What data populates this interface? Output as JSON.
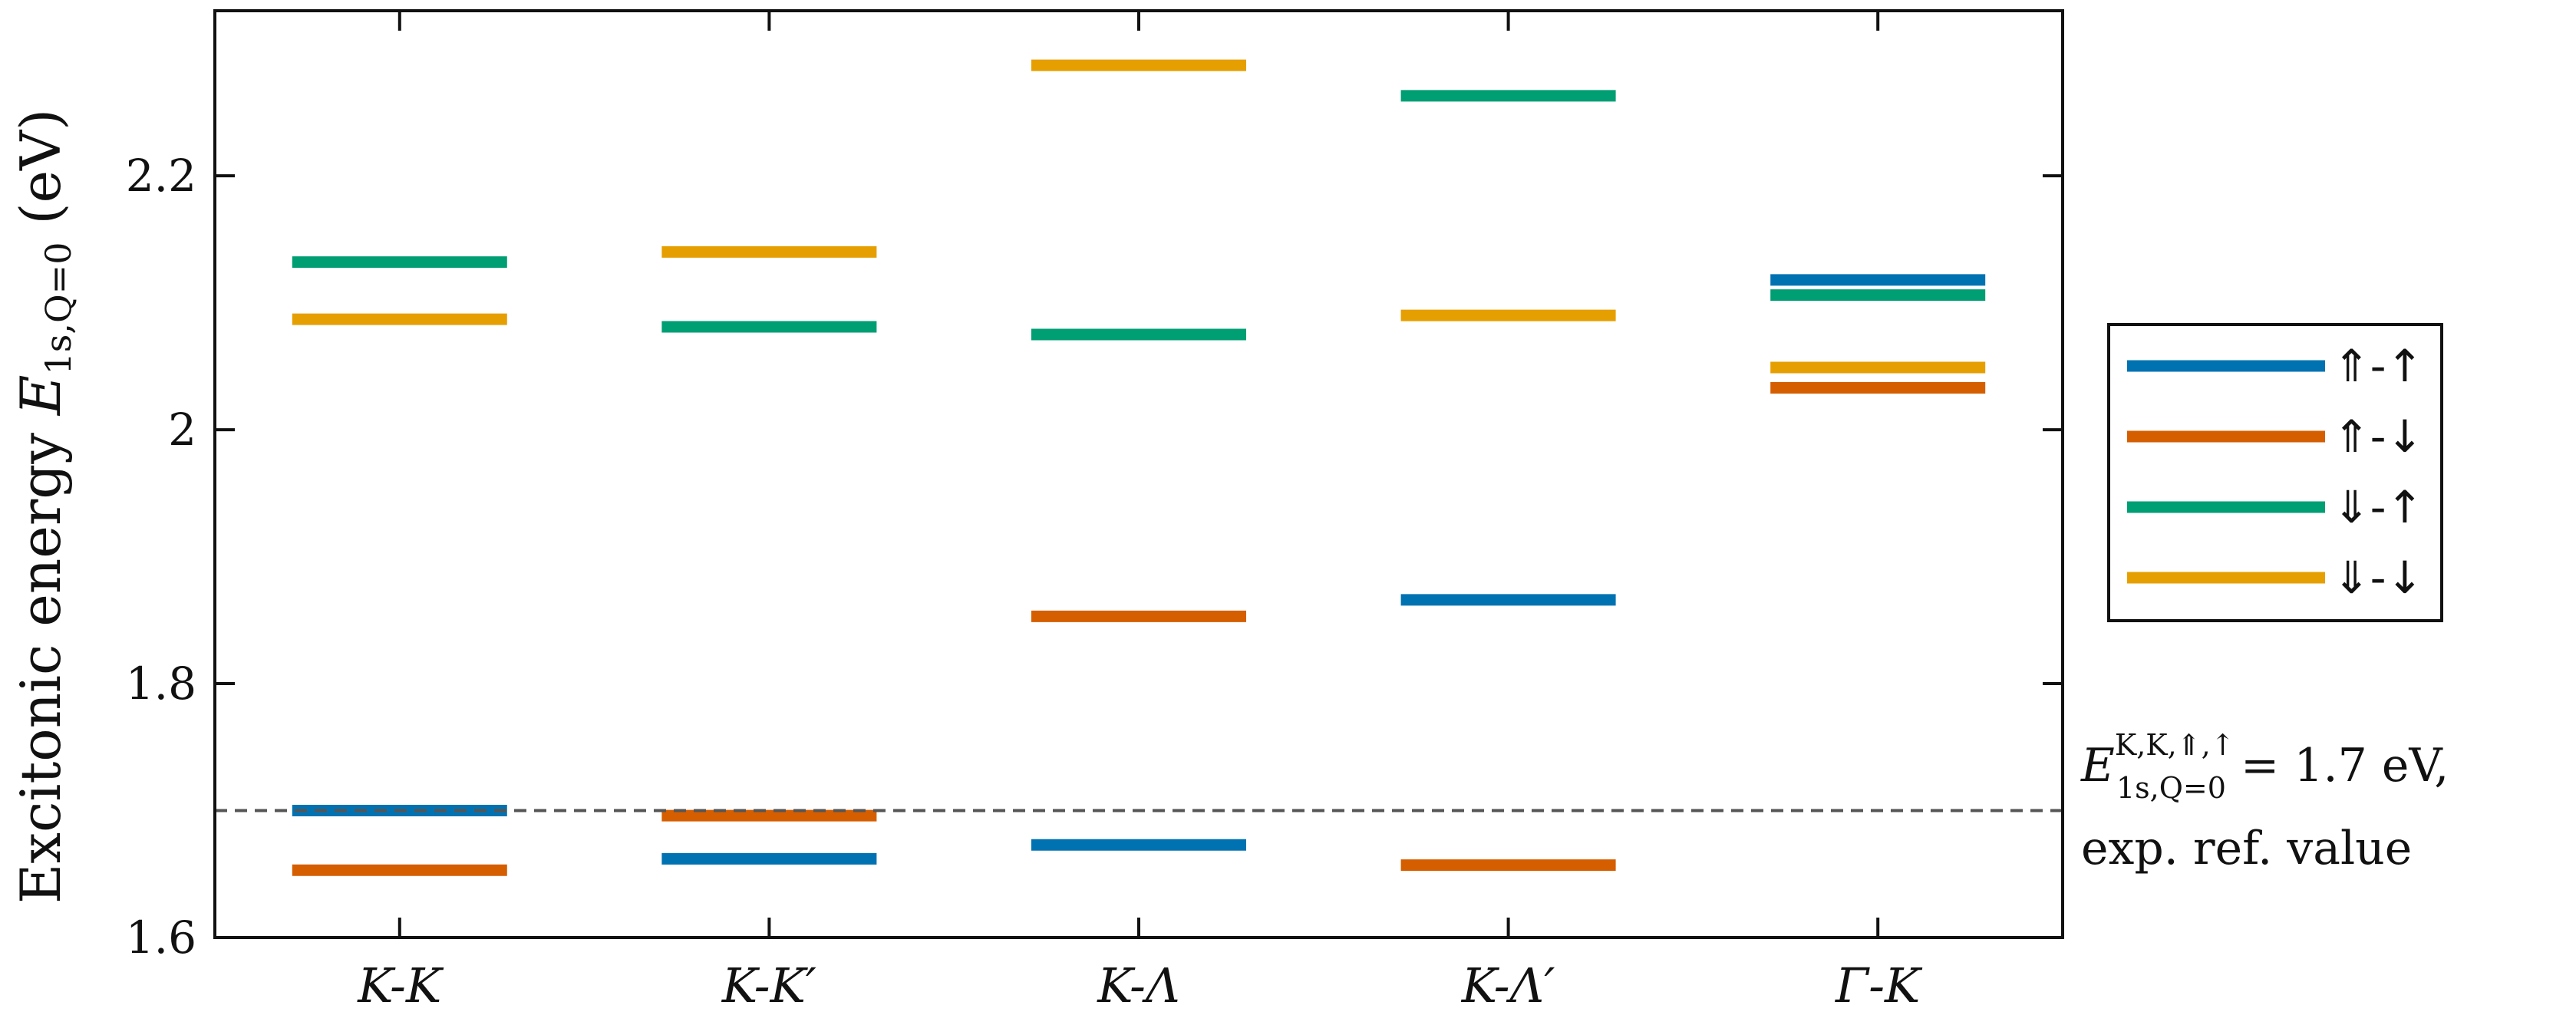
{
  "chart_data": {
    "type": "bar",
    "title": "",
    "xlabel": "",
    "ylabel": "Excitonic energy E_{1s,Q=0} (eV)",
    "ylabel_main": "Excitonic energy ",
    "ylabel_symbol": "E",
    "ylabel_sub": "1s,Q=0",
    "ylabel_unit": " (eV)",
    "ylim": [
      1.6,
      2.33
    ],
    "yticks": [
      {
        "value": 1.6,
        "label": "1.6"
      },
      {
        "value": 1.8,
        "label": "1.8"
      },
      {
        "value": 2.0,
        "label": "2"
      },
      {
        "value": 2.2,
        "label": "2.2"
      }
    ],
    "categories": [
      "K-K",
      "K-K′",
      "K-Λ",
      "K-Λ′",
      "Γ-K"
    ],
    "series": [
      {
        "name": "⇑-↑",
        "color": "#0072B2",
        "values": [
          1.7,
          1.662,
          1.673,
          1.866,
          2.118
        ]
      },
      {
        "name": "⇑-↓",
        "color": "#D55E00",
        "values": [
          1.653,
          1.696,
          1.853,
          1.657,
          2.033
        ]
      },
      {
        "name": "⇓-↑",
        "color": "#009E73",
        "values": [
          2.132,
          2.081,
          2.075,
          2.263,
          2.106
        ]
      },
      {
        "name": "⇓-↓",
        "color": "#E69F00",
        "values": [
          2.087,
          2.14,
          2.287,
          2.09,
          2.049
        ]
      }
    ],
    "reference_line": {
      "value": 1.7,
      "style": "dashed",
      "label_symbol": "E",
      "label_superscript": "K,K,⇑,↑",
      "label_subscript": "1s,Q=0",
      "label_value": " = 1.7 eV,",
      "label_line2": "exp. ref. value"
    },
    "legend_position": "right"
  }
}
